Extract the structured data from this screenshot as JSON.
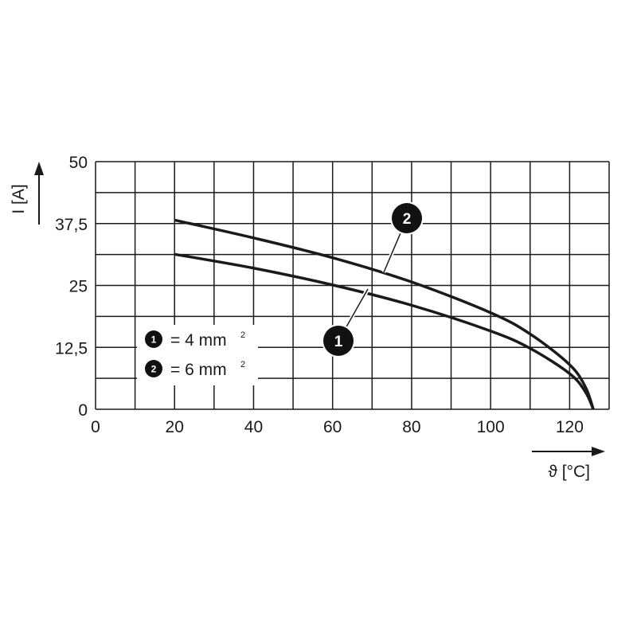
{
  "chart_data": {
    "type": "line",
    "xlabel": "ϑ [°C]",
    "ylabel": "I [A]",
    "xlim": [
      0,
      130
    ],
    "ylim": [
      0,
      50
    ],
    "x_ticks": [
      "0",
      "20",
      "40",
      "60",
      "80",
      "100",
      "120"
    ],
    "y_ticks": [
      "0",
      "12,5",
      "25",
      "37,5",
      "50"
    ],
    "grid": true,
    "legend_position": "bottom-left",
    "series": [
      {
        "marker": "1",
        "legend": "= 4 mm",
        "legend_sup": "2",
        "x": [
          20,
          40,
          60,
          80,
          100,
          110,
          120,
          124,
          126
        ],
        "y": [
          31.3,
          28.5,
          25.1,
          21.0,
          15.8,
          12.3,
          7.2,
          3.5,
          0
        ]
      },
      {
        "marker": "2",
        "legend": "= 6 mm",
        "legend_sup": "2",
        "x": [
          20,
          40,
          60,
          80,
          100,
          110,
          120,
          124,
          126
        ],
        "y": [
          38.2,
          34.6,
          30.6,
          25.7,
          19.5,
          15.2,
          9.0,
          4.5,
          0
        ]
      }
    ]
  }
}
